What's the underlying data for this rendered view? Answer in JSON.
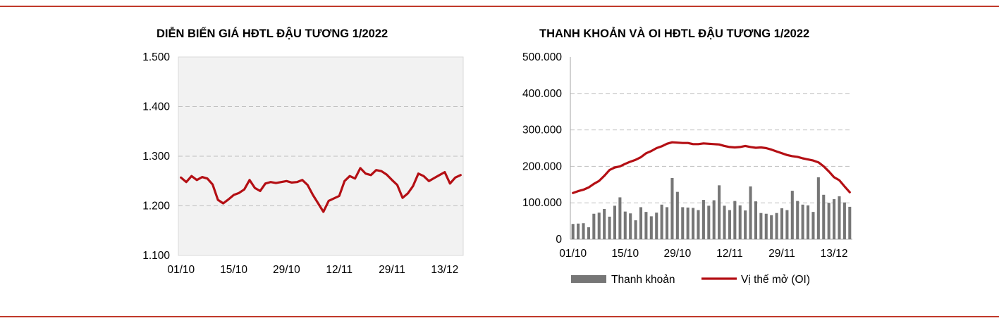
{
  "colors": {
    "rule": "#c0392b",
    "line": "#b40f14",
    "bar": "#767676",
    "plot_bg": "#f2f2f2",
    "grid": "#bfbfbf"
  },
  "chart_data": [
    {
      "type": "line",
      "title": "DIỄN BIẾN GIÁ HĐTL ĐẬU TƯƠNG 1/2022",
      "xlabel": "",
      "ylabel": "",
      "ylim": [
        1100,
        1500
      ],
      "y_ticks": [
        "1.100",
        "1.200",
        "1.300",
        "1.400",
        "1.500"
      ],
      "x_ticks": [
        "01/10",
        "15/10",
        "29/10",
        "12/11",
        "29/11",
        "13/12"
      ],
      "grid": true,
      "series": [
        {
          "values": [
            1257,
            1248,
            1260,
            1252,
            1258,
            1255,
            1243,
            1212,
            1205,
            1213,
            1222,
            1226,
            1233,
            1252,
            1236,
            1230,
            1245,
            1248,
            1246,
            1248,
            1250,
            1247,
            1248,
            1252,
            1242,
            1222,
            1205,
            1188,
            1210,
            1215,
            1220,
            1250,
            1260,
            1255,
            1276,
            1265,
            1262,
            1272,
            1270,
            1263,
            1252,
            1242,
            1216,
            1225,
            1240,
            1265,
            1260,
            1250,
            1256,
            1262,
            1268,
            1245,
            1257,
            1262
          ]
        }
      ]
    },
    {
      "type": "bar+line",
      "title": "THANH KHOẢN VÀ OI HĐTL ĐẬU TƯƠNG 1/2022",
      "xlabel": "",
      "ylabel": "",
      "ylim": [
        0,
        500000
      ],
      "y_ticks": [
        "0",
        "100.000",
        "200.000",
        "300.000",
        "400.000",
        "500.000"
      ],
      "x_ticks": [
        "01/10",
        "15/10",
        "29/10",
        "12/11",
        "29/11",
        "13/12"
      ],
      "grid": true,
      "legend_position": "bottom",
      "series": [
        {
          "name": "Thanh khoản",
          "kind": "bar",
          "values": [
            42000,
            43000,
            44000,
            33000,
            70000,
            73000,
            83000,
            62000,
            92000,
            115000,
            76000,
            71000,
            52000,
            88000,
            75000,
            63000,
            73000,
            95000,
            88000,
            168000,
            130000,
            88000,
            87000,
            86000,
            80000,
            108000,
            92000,
            107000,
            148000,
            92000,
            80000,
            105000,
            93000,
            79000,
            145000,
            104000,
            72000,
            70000,
            66000,
            72000,
            85000,
            80000,
            133000,
            105000,
            95000,
            93000,
            75000,
            170000,
            122000,
            100000,
            110000,
            118000,
            101000,
            89000
          ]
        },
        {
          "name": "Vị thế mở (OI)",
          "kind": "line",
          "values": [
            127000,
            132000,
            136000,
            142000,
            152000,
            160000,
            174000,
            190000,
            197000,
            200000,
            207000,
            213000,
            218000,
            225000,
            236000,
            242000,
            250000,
            255000,
            262000,
            266000,
            265000,
            264000,
            264000,
            261000,
            261000,
            263000,
            262000,
            261000,
            260000,
            256000,
            253000,
            252000,
            253000,
            256000,
            253000,
            251000,
            252000,
            250000,
            246000,
            241000,
            236000,
            231000,
            228000,
            226000,
            222000,
            219000,
            216000,
            211000,
            200000,
            186000,
            170000,
            162000,
            145000,
            129000
          ]
        }
      ]
    }
  ]
}
